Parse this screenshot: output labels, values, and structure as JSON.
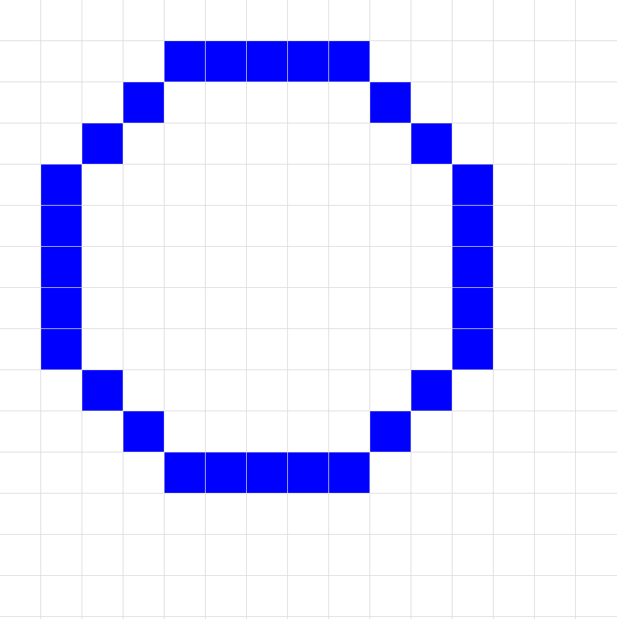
{
  "grid": {
    "columns": 15,
    "rows": 15,
    "line_color": "#d9d9d9",
    "background_color": "#ffffff"
  },
  "drawing": {
    "fill_color": "#0000ff",
    "shape": "circle outline",
    "filled_cells": [
      [
        4,
        1
      ],
      [
        5,
        1
      ],
      [
        6,
        1
      ],
      [
        7,
        1
      ],
      [
        8,
        1
      ],
      [
        3,
        2
      ],
      [
        9,
        2
      ],
      [
        2,
        3
      ],
      [
        10,
        3
      ],
      [
        1,
        4
      ],
      [
        11,
        4
      ],
      [
        1,
        5
      ],
      [
        11,
        5
      ],
      [
        1,
        6
      ],
      [
        11,
        6
      ],
      [
        1,
        7
      ],
      [
        11,
        7
      ],
      [
        1,
        8
      ],
      [
        11,
        8
      ],
      [
        2,
        9
      ],
      [
        10,
        9
      ],
      [
        3,
        10
      ],
      [
        9,
        10
      ],
      [
        4,
        11
      ],
      [
        5,
        11
      ],
      [
        6,
        11
      ],
      [
        7,
        11
      ],
      [
        8,
        11
      ]
    ]
  }
}
